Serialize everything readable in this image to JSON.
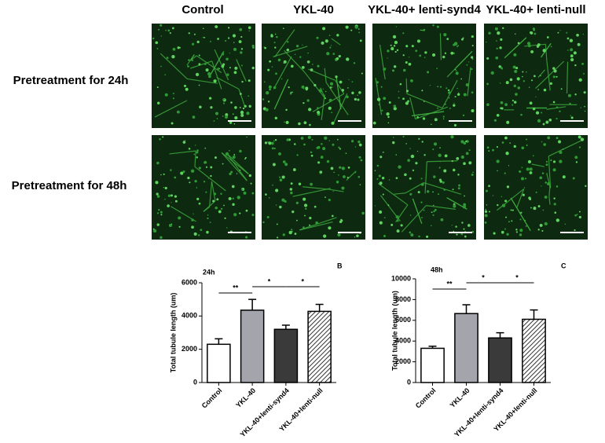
{
  "figure": {
    "columns": [
      "Control",
      "YKL-40",
      "YKL-40+ lenti-synd4",
      "YKL-40+ lenti-null"
    ],
    "rows": [
      "Pretreatment for 24h",
      "Pretreatment for 48h"
    ]
  },
  "chart_data": [
    {
      "type": "bar",
      "title": "24h",
      "panel": "B",
      "y_label": "Total tubule length (um)",
      "categories": [
        "Control",
        "YKL-40",
        "YKL-40+lenti-synd4",
        "YKL-40+lenti-null"
      ],
      "values": [
        2300,
        4350,
        3200,
        4280
      ],
      "errors": [
        330,
        650,
        250,
        420
      ],
      "colors": [
        "#ffffff",
        "#a4a4ac",
        "#3a3a3a",
        "#ffffff"
      ],
      "hatched": [
        false,
        false,
        false,
        true
      ],
      "ylim": [
        0,
        6000
      ],
      "yticks": [
        0,
        2000,
        4000,
        6000
      ],
      "annotations": [
        {
          "text": "**",
          "from": 0,
          "to": 1
        },
        {
          "text": "*",
          "from": 1,
          "to": 2
        },
        {
          "text": "*",
          "from": 2,
          "to": 3
        }
      ]
    },
    {
      "type": "bar",
      "title": "48h",
      "panel": "C",
      "y_label": "Total tubule length (um)",
      "categories": [
        "Control",
        "YKL-40",
        "YKL-40+lenti-synd4",
        "YKL-40+lenti-null"
      ],
      "values": [
        3300,
        6650,
        4300,
        6100
      ],
      "errors": [
        200,
        850,
        500,
        900
      ],
      "colors": [
        "#ffffff",
        "#a4a4ac",
        "#3a3a3a",
        "#ffffff"
      ],
      "hatched": [
        false,
        false,
        false,
        true
      ],
      "ylim": [
        0,
        10000
      ],
      "yticks": [
        0,
        2000,
        4000,
        6000,
        8000,
        10000
      ],
      "annotations": [
        {
          "text": "**",
          "from": 0,
          "to": 1
        },
        {
          "text": "*",
          "from": 1,
          "to": 2
        },
        {
          "text": "*",
          "from": 2,
          "to": 3
        }
      ]
    }
  ]
}
